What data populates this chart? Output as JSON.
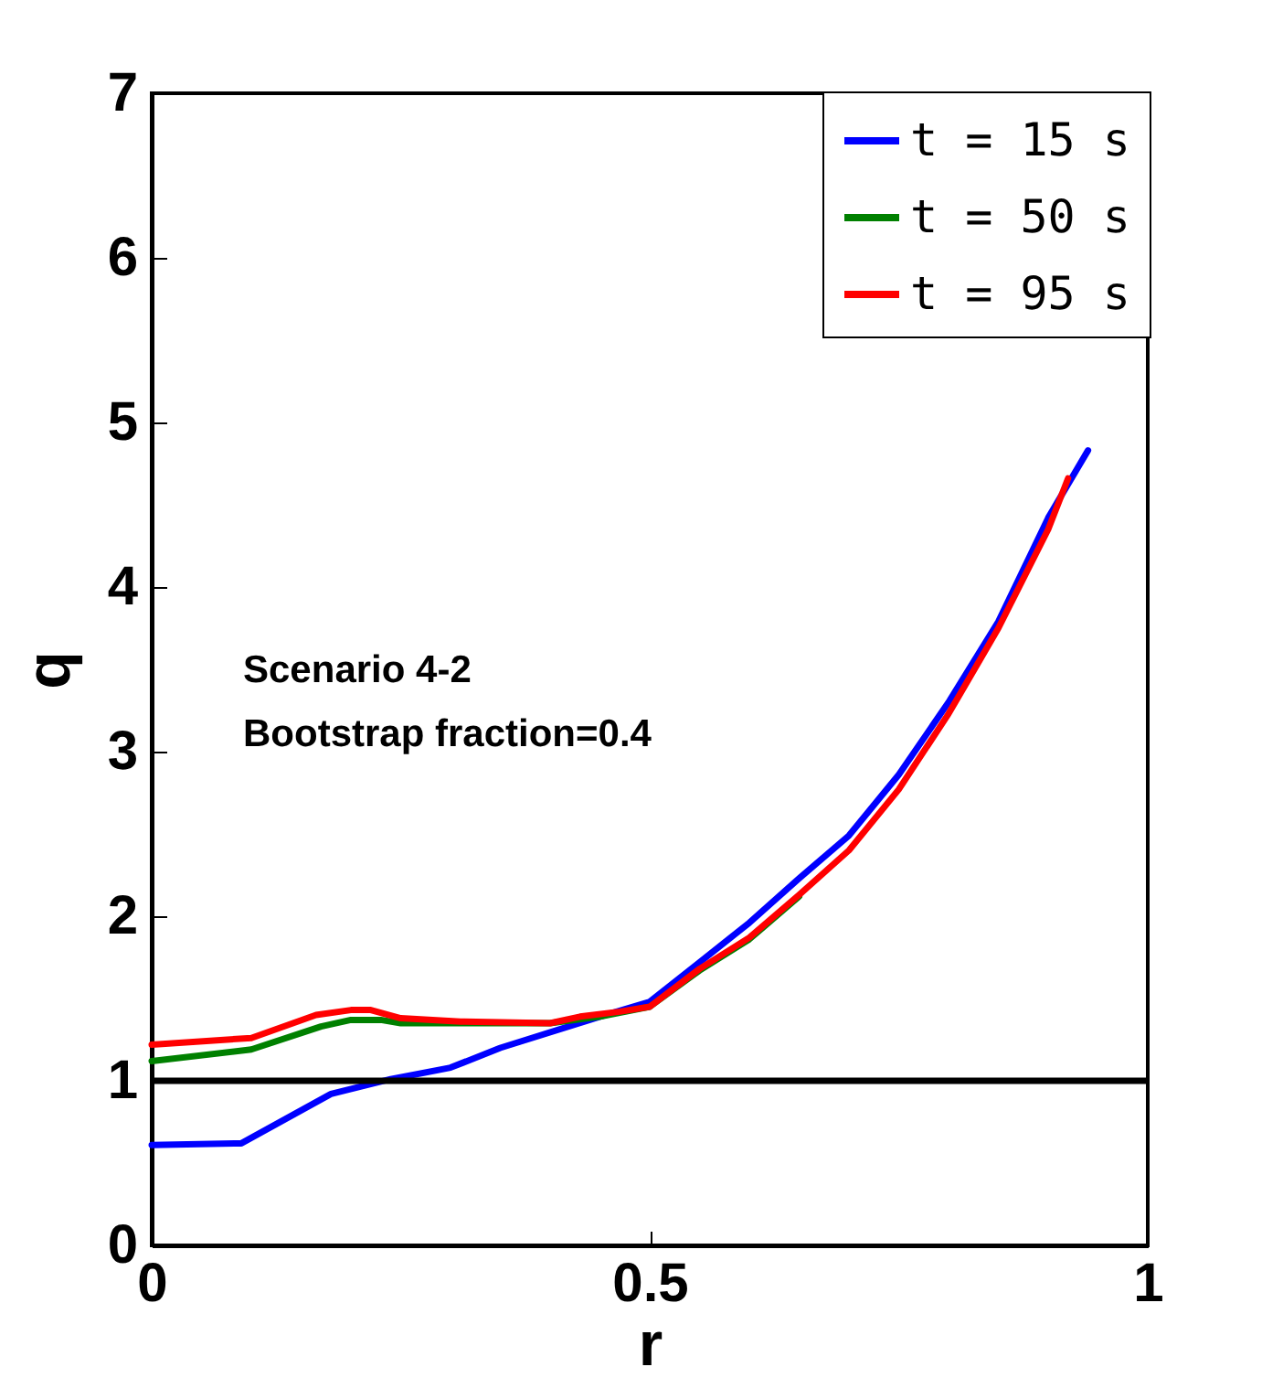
{
  "chart_data": {
    "type": "line",
    "xlabel": "r",
    "ylabel": "q",
    "xlim": [
      0,
      1
    ],
    "ylim": [
      0,
      7
    ],
    "xticks": [
      0,
      0.5,
      1
    ],
    "yticks": [
      0,
      1,
      2,
      3,
      4,
      5,
      6,
      7
    ],
    "grid": false,
    "legend": "top right",
    "marker": "none",
    "line_style": "solid",
    "annotations": [
      "Scenario 4-2",
      "Bootstrap fraction=0.4"
    ],
    "ref_lines": [
      {
        "axis": "y",
        "value": 1,
        "color": "#000000"
      }
    ],
    "series": [
      {
        "name": "t = 15 s",
        "color": "#0000ff",
        "x": [
          0,
          0.09,
          0.18,
          0.24,
          0.3,
          0.35,
          0.45,
          0.5,
          0.55,
          0.6,
          0.65,
          0.7,
          0.75,
          0.8,
          0.85,
          0.9,
          0.94
        ],
        "values": [
          0.61,
          0.62,
          0.92,
          1.01,
          1.08,
          1.2,
          1.39,
          1.48,
          1.72,
          1.96,
          2.23,
          2.49,
          2.86,
          3.3,
          3.79,
          4.42,
          4.83
        ]
      },
      {
        "name": "t = 50 s",
        "color": "#008000",
        "x": [
          0,
          0.1,
          0.17,
          0.2,
          0.23,
          0.25,
          0.4,
          0.45,
          0.5,
          0.55,
          0.6,
          0.65
        ],
        "values": [
          1.12,
          1.19,
          1.33,
          1.37,
          1.37,
          1.35,
          1.35,
          1.39,
          1.45,
          1.67,
          1.86,
          2.12
        ]
      },
      {
        "name": "t = 95 s",
        "color": "#ff0000",
        "x": [
          0,
          0.1,
          0.165,
          0.2,
          0.22,
          0.25,
          0.31,
          0.4,
          0.43,
          0.47,
          0.5,
          0.55,
          0.6,
          0.65,
          0.7,
          0.75,
          0.8,
          0.85,
          0.9,
          0.92
        ],
        "values": [
          1.22,
          1.26,
          1.4,
          1.43,
          1.43,
          1.38,
          1.36,
          1.35,
          1.39,
          1.42,
          1.45,
          1.68,
          1.87,
          2.13,
          2.4,
          2.77,
          3.23,
          3.75,
          4.35,
          4.66
        ]
      }
    ]
  }
}
